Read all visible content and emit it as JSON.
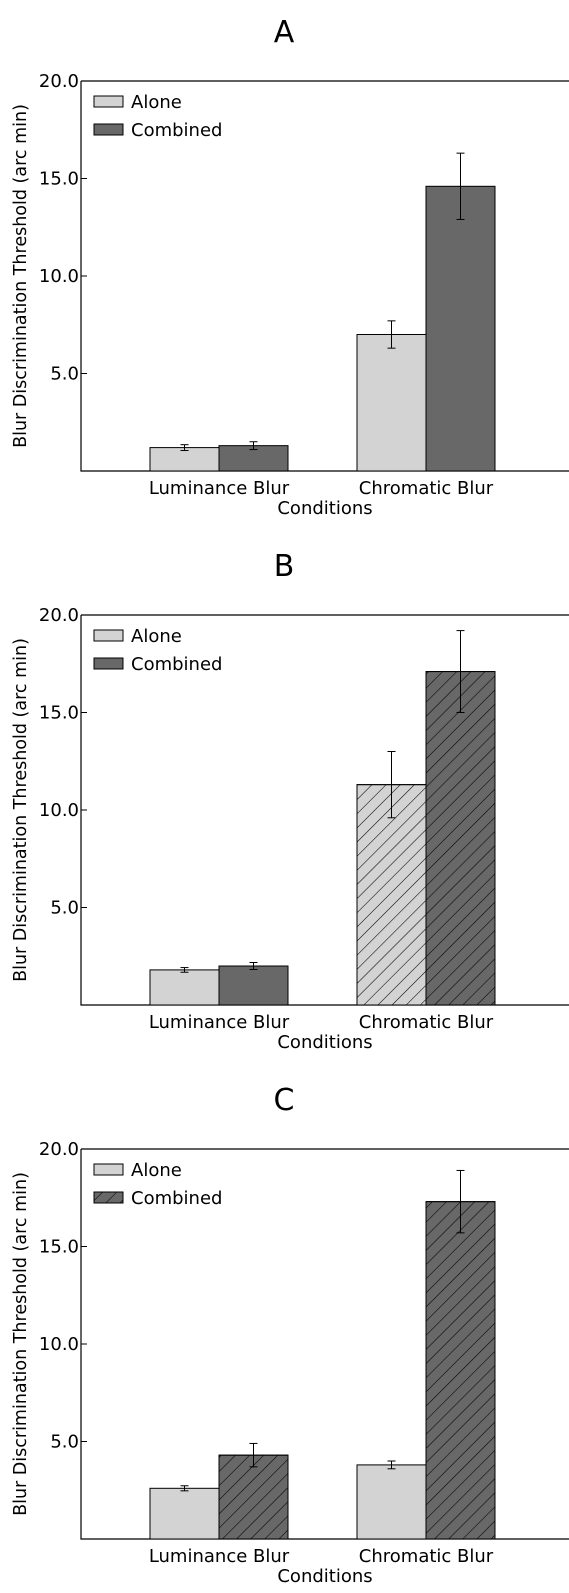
{
  "chart_data": [
    {
      "type": "bar",
      "title": "A",
      "xlabel": "Conditions",
      "ylabel": "Blur Discrimination Threshold (arc min)",
      "ylim": [
        0,
        20
      ],
      "yticks": [
        "5.0",
        "10.0",
        "15.0",
        "20.0"
      ],
      "categories": [
        "Luminance Blur",
        "Chromatic Blur"
      ],
      "legend": "top-left",
      "series": [
        {
          "name": "Alone",
          "color": "#d3d3d3",
          "values": [
            1.2,
            7.0
          ],
          "errors": [
            0.15,
            0.7
          ],
          "hatched": [
            false,
            false
          ]
        },
        {
          "name": "Combined",
          "color": "#686868",
          "values": [
            1.3,
            14.6
          ],
          "errors": [
            0.2,
            1.7
          ],
          "hatched": [
            false,
            false
          ]
        }
      ],
      "legend_hatched": [
        false,
        false
      ]
    },
    {
      "type": "bar",
      "title": "B",
      "xlabel": "Conditions",
      "ylabel": "Blur Discrimination Threshold (arc min)",
      "ylim": [
        0,
        20
      ],
      "yticks": [
        "5.0",
        "10.0",
        "15.0",
        "20.0"
      ],
      "categories": [
        "Luminance Blur",
        "Chromatic Blur"
      ],
      "legend": "top-left",
      "series": [
        {
          "name": "Alone",
          "color": "#d3d3d3",
          "values": [
            1.8,
            11.3
          ],
          "errors": [
            0.12,
            1.7
          ],
          "hatched": [
            false,
            true
          ]
        },
        {
          "name": "Combined",
          "color": "#686868",
          "values": [
            2.0,
            17.1
          ],
          "errors": [
            0.18,
            2.1
          ],
          "hatched": [
            false,
            true
          ]
        }
      ],
      "legend_hatched": [
        false,
        false
      ]
    },
    {
      "type": "bar",
      "title": "C",
      "xlabel": "Conditions",
      "ylabel": "Blur Discrimination Threshold (arc min)",
      "ylim": [
        0,
        20
      ],
      "yticks": [
        "5.0",
        "10.0",
        "15.0",
        "20.0"
      ],
      "categories": [
        "Luminance Blur",
        "Chromatic Blur"
      ],
      "legend": "top-left",
      "series": [
        {
          "name": "Alone",
          "color": "#d3d3d3",
          "values": [
            2.6,
            3.8
          ],
          "errors": [
            0.13,
            0.2
          ],
          "hatched": [
            false,
            false
          ]
        },
        {
          "name": "Combined",
          "color": "#686868",
          "values": [
            4.3,
            17.3
          ],
          "errors": [
            0.6,
            1.6
          ],
          "hatched": [
            true,
            true
          ]
        }
      ],
      "legend_hatched": [
        false,
        true
      ]
    }
  ]
}
